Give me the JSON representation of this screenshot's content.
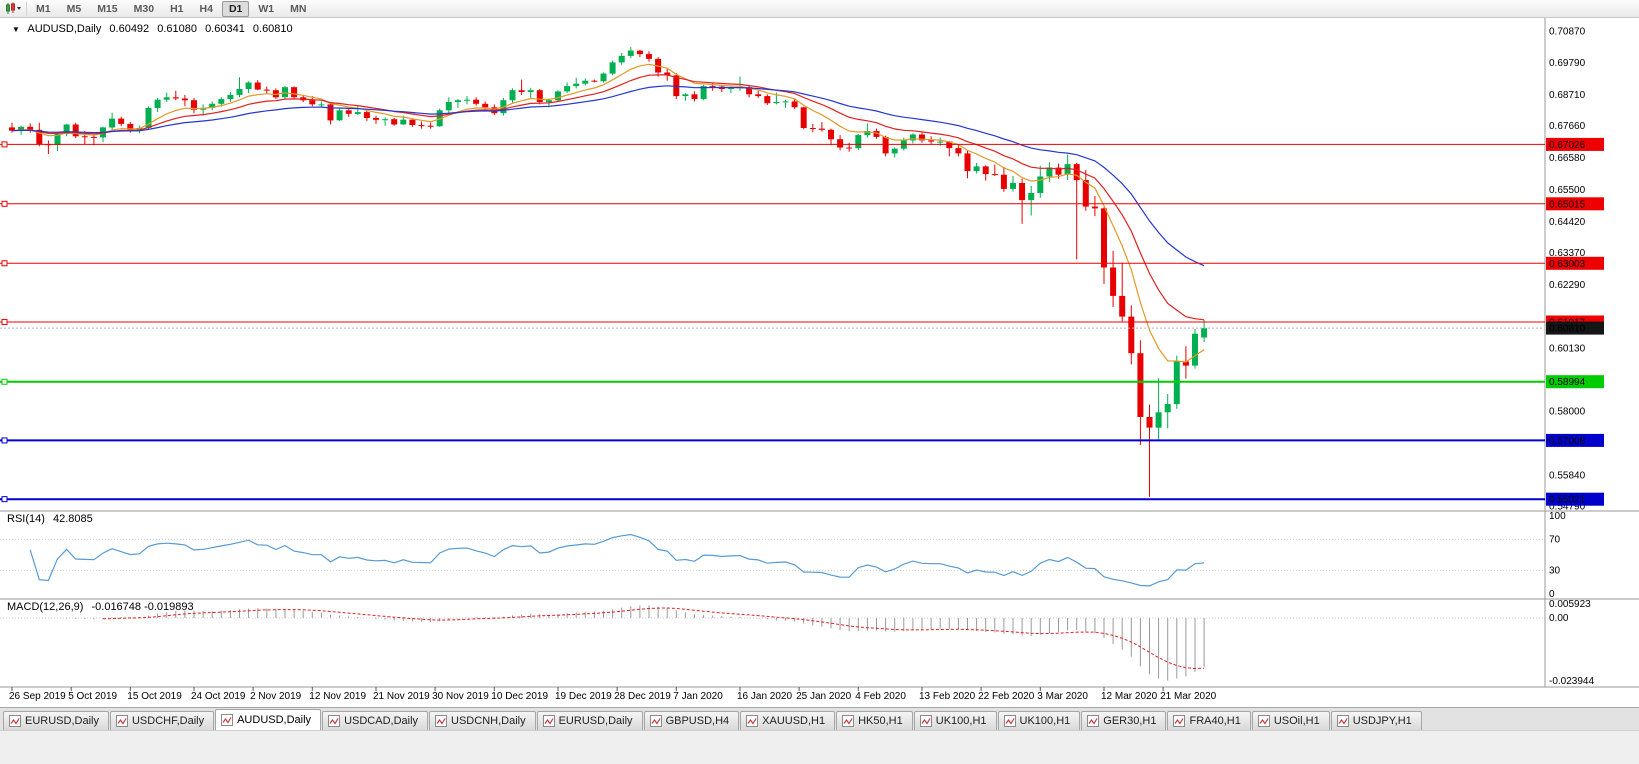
{
  "toolbar": {
    "timeframes": [
      "M1",
      "M5",
      "M15",
      "M30",
      "H1",
      "H4",
      "D1",
      "W1",
      "MN"
    ],
    "active_timeframe": "D1"
  },
  "chart": {
    "title": {
      "marker": "▼",
      "symbol": "AUDUSD,Daily",
      "open": "0.60492",
      "high": "0.61080",
      "low": "0.60341",
      "close": "0.60810"
    },
    "price_axis_labels": [
      "0.70870",
      "0.69790",
      "0.68710",
      "0.67660",
      "0.66580",
      "0.65500",
      "0.64420",
      "0.63370",
      "0.62290",
      "0.60130",
      "0.58000",
      "0.55840",
      "0.54790"
    ],
    "rsi": {
      "name": "RSI(14)",
      "value": "42.8085",
      "axis_labels": [
        "100",
        "70",
        "30",
        "0"
      ]
    },
    "macd": {
      "name": "MACD(12,26,9)",
      "value": "-0.016748 -0.019893",
      "axis_labels": [
        "0.005923",
        "0.00",
        "-0.023944"
      ]
    }
  },
  "chart_data": {
    "type": "candlestick",
    "symbol": "AUDUSD",
    "timeframe": "Daily",
    "ylim": [
      0.5462,
      0.711
    ],
    "ohlc": [
      [
        0.676,
        0.6776,
        0.6742,
        0.6749
      ],
      [
        0.6749,
        0.6766,
        0.6735,
        0.6762
      ],
      [
        0.6762,
        0.6774,
        0.6742,
        0.6752
      ],
      [
        0.6752,
        0.6776,
        0.6696,
        0.6704
      ],
      [
        0.6704,
        0.6716,
        0.667,
        0.67
      ],
      [
        0.67,
        0.6742,
        0.668,
        0.6738
      ],
      [
        0.6738,
        0.6772,
        0.673,
        0.677
      ],
      [
        0.677,
        0.6776,
        0.6724,
        0.673
      ],
      [
        0.673,
        0.6748,
        0.6704,
        0.6728
      ],
      [
        0.6728,
        0.6736,
        0.67,
        0.6726
      ],
      [
        0.6726,
        0.6762,
        0.671,
        0.676
      ],
      [
        0.676,
        0.681,
        0.6752,
        0.679
      ],
      [
        0.679,
        0.6796,
        0.6764,
        0.6772
      ],
      [
        0.6772,
        0.6778,
        0.6742,
        0.6752
      ],
      [
        0.6752,
        0.6766,
        0.674,
        0.6758
      ],
      [
        0.6758,
        0.6832,
        0.6752,
        0.6826
      ],
      [
        0.6826,
        0.686,
        0.6812,
        0.6854
      ],
      [
        0.6854,
        0.6878,
        0.6846,
        0.6862
      ],
      [
        0.6862,
        0.6884,
        0.6852,
        0.6858
      ],
      [
        0.6858,
        0.687,
        0.6832,
        0.6852
      ],
      [
        0.6852,
        0.686,
        0.6808,
        0.682
      ],
      [
        0.682,
        0.6838,
        0.68,
        0.6826
      ],
      [
        0.6826,
        0.6848,
        0.6818,
        0.684
      ],
      [
        0.684,
        0.6862,
        0.683,
        0.6856
      ],
      [
        0.6856,
        0.688,
        0.6846,
        0.687
      ],
      [
        0.687,
        0.693,
        0.6862,
        0.689
      ],
      [
        0.689,
        0.6916,
        0.6876,
        0.6912
      ],
      [
        0.6912,
        0.692,
        0.6886,
        0.6888
      ],
      [
        0.6888,
        0.6898,
        0.6874,
        0.6886
      ],
      [
        0.6886,
        0.6892,
        0.6856,
        0.6862
      ],
      [
        0.6862,
        0.69,
        0.6856,
        0.6896
      ],
      [
        0.6896,
        0.6898,
        0.6858,
        0.6862
      ],
      [
        0.6862,
        0.687,
        0.6846,
        0.6852
      ],
      [
        0.6852,
        0.6866,
        0.6832,
        0.6838
      ],
      [
        0.6838,
        0.6848,
        0.683,
        0.6838
      ],
      [
        0.6838,
        0.684,
        0.677,
        0.6784
      ],
      [
        0.6784,
        0.6824,
        0.6782,
        0.6818
      ],
      [
        0.6818,
        0.6822,
        0.6796,
        0.6806
      ],
      [
        0.6806,
        0.6832,
        0.6802,
        0.6812
      ],
      [
        0.6812,
        0.6816,
        0.6782,
        0.6792
      ],
      [
        0.6792,
        0.68,
        0.6772,
        0.6786
      ],
      [
        0.6786,
        0.6794,
        0.6766,
        0.6788
      ],
      [
        0.6788,
        0.6792,
        0.6766,
        0.677
      ],
      [
        0.677,
        0.68,
        0.6768,
        0.6786
      ],
      [
        0.6786,
        0.6788,
        0.6762,
        0.6768
      ],
      [
        0.6768,
        0.678,
        0.6756,
        0.6766
      ],
      [
        0.6766,
        0.6776,
        0.6756,
        0.6764
      ],
      [
        0.6764,
        0.6824,
        0.6762,
        0.6818
      ],
      [
        0.6818,
        0.6862,
        0.6806,
        0.6846
      ],
      [
        0.6846,
        0.6856,
        0.6826,
        0.6852
      ],
      [
        0.6852,
        0.6866,
        0.6838,
        0.6854
      ],
      [
        0.6854,
        0.6862,
        0.6834,
        0.684
      ],
      [
        0.684,
        0.6848,
        0.6822,
        0.6828
      ],
      [
        0.6828,
        0.6838,
        0.6802,
        0.6808
      ],
      [
        0.6808,
        0.686,
        0.68,
        0.6852
      ],
      [
        0.6852,
        0.6892,
        0.6844,
        0.6886
      ],
      [
        0.6886,
        0.6922,
        0.687,
        0.688
      ],
      [
        0.688,
        0.6894,
        0.6856,
        0.6886
      ],
      [
        0.6886,
        0.689,
        0.6838,
        0.6846
      ],
      [
        0.6846,
        0.6858,
        0.6828,
        0.6852
      ],
      [
        0.6852,
        0.6886,
        0.6846,
        0.6882
      ],
      [
        0.6882,
        0.6912,
        0.6876,
        0.69
      ],
      [
        0.69,
        0.6928,
        0.6892,
        0.6908
      ],
      [
        0.6908,
        0.6926,
        0.6902,
        0.6918
      ],
      [
        0.6918,
        0.6922,
        0.6912,
        0.6916
      ],
      [
        0.6916,
        0.6946,
        0.6912,
        0.6942
      ],
      [
        0.6942,
        0.6986,
        0.6936,
        0.698
      ],
      [
        0.698,
        0.7012,
        0.6972,
        0.7002
      ],
      [
        0.7002,
        0.7032,
        0.6994,
        0.702
      ],
      [
        0.702,
        0.7022,
        0.6998,
        0.7008
      ],
      [
        0.7008,
        0.7018,
        0.6982,
        0.6992
      ],
      [
        0.6992,
        0.6998,
        0.6932,
        0.6946
      ],
      [
        0.6946,
        0.6958,
        0.6918,
        0.6936
      ],
      [
        0.6936,
        0.6944,
        0.6856,
        0.6866
      ],
      [
        0.6866,
        0.6876,
        0.685,
        0.6872
      ],
      [
        0.6872,
        0.6882,
        0.6848,
        0.6856
      ],
      [
        0.6856,
        0.6904,
        0.6852,
        0.69
      ],
      [
        0.69,
        0.6912,
        0.6884,
        0.6898
      ],
      [
        0.6898,
        0.6904,
        0.688,
        0.689
      ],
      [
        0.689,
        0.69,
        0.6876,
        0.6894
      ],
      [
        0.6894,
        0.6932,
        0.6884,
        0.6896
      ],
      [
        0.6896,
        0.6902,
        0.6862,
        0.6872
      ],
      [
        0.6872,
        0.6884,
        0.686,
        0.6866
      ],
      [
        0.6866,
        0.6872,
        0.6836,
        0.6842
      ],
      [
        0.6842,
        0.6878,
        0.6838,
        0.6846
      ],
      [
        0.6846,
        0.6854,
        0.6826,
        0.6848
      ],
      [
        0.6848,
        0.6856,
        0.6822,
        0.6828
      ],
      [
        0.6828,
        0.683,
        0.6754,
        0.6758
      ],
      [
        0.6758,
        0.6772,
        0.6744,
        0.6756
      ],
      [
        0.6756,
        0.6778,
        0.6746,
        0.6752
      ],
      [
        0.6752,
        0.6756,
        0.67,
        0.672
      ],
      [
        0.672,
        0.6734,
        0.6682,
        0.6692
      ],
      [
        0.6692,
        0.6708,
        0.6678,
        0.669
      ],
      [
        0.669,
        0.6738,
        0.6684,
        0.6734
      ],
      [
        0.6734,
        0.6774,
        0.6726,
        0.6748
      ],
      [
        0.6748,
        0.6756,
        0.6722,
        0.6728
      ],
      [
        0.6728,
        0.6732,
        0.6662,
        0.6672
      ],
      [
        0.6672,
        0.6692,
        0.6658,
        0.6688
      ],
      [
        0.6688,
        0.6726,
        0.6682,
        0.6716
      ],
      [
        0.6716,
        0.674,
        0.6706,
        0.6736
      ],
      [
        0.6736,
        0.6742,
        0.6708,
        0.6716
      ],
      [
        0.6716,
        0.673,
        0.6702,
        0.6712
      ],
      [
        0.6712,
        0.6726,
        0.6698,
        0.6712
      ],
      [
        0.6712,
        0.6714,
        0.6662,
        0.669
      ],
      [
        0.669,
        0.6704,
        0.6662,
        0.6672
      ],
      [
        0.6672,
        0.6682,
        0.6588,
        0.6612
      ],
      [
        0.6612,
        0.664,
        0.6604,
        0.6628
      ],
      [
        0.6628,
        0.6632,
        0.658,
        0.6602
      ],
      [
        0.6602,
        0.6634,
        0.6596,
        0.66
      ],
      [
        0.66,
        0.6626,
        0.6542,
        0.6552
      ],
      [
        0.6552,
        0.6596,
        0.6542,
        0.6572
      ],
      [
        0.6572,
        0.6586,
        0.6434,
        0.6514
      ],
      [
        0.6514,
        0.6562,
        0.6462,
        0.6538
      ],
      [
        0.6538,
        0.663,
        0.6522,
        0.6594
      ],
      [
        0.6594,
        0.6642,
        0.6576,
        0.6624
      ],
      [
        0.6624,
        0.6638,
        0.6586,
        0.66
      ],
      [
        0.66,
        0.6668,
        0.6582,
        0.6636
      ],
      [
        0.6636,
        0.664,
        0.6313,
        0.6582
      ],
      [
        0.6582,
        0.6616,
        0.6478,
        0.6492
      ],
      [
        0.6492,
        0.6528,
        0.646,
        0.6486
      ],
      [
        0.6486,
        0.649,
        0.623,
        0.6286
      ],
      [
        0.6286,
        0.6342,
        0.6152,
        0.619
      ],
      [
        0.619,
        0.6302,
        0.6104,
        0.612
      ],
      [
        0.612,
        0.6158,
        0.5958,
        0.5996
      ],
      [
        0.5996,
        0.604,
        0.5685,
        0.578
      ],
      [
        0.578,
        0.5822,
        0.551,
        0.5744
      ],
      [
        0.5744,
        0.5912,
        0.5702,
        0.5796
      ],
      [
        0.5796,
        0.5858,
        0.5742,
        0.5824
      ],
      [
        0.5824,
        0.5988,
        0.5808,
        0.5968
      ],
      [
        0.5968,
        0.602,
        0.591,
        0.5954
      ],
      [
        0.5954,
        0.6078,
        0.5944,
        0.6062
      ],
      [
        0.60492,
        0.6108,
        0.60341,
        0.6081
      ]
    ],
    "x_ticks": [
      [
        "26 Sep 2019",
        0
      ],
      [
        "5 Oct 2019",
        6.5
      ],
      [
        "15 Oct 2019",
        13
      ],
      [
        "24 Oct 2019",
        20
      ],
      [
        "2 Nov 2019",
        26.5
      ],
      [
        "12 Nov 2019",
        33
      ],
      [
        "21 Nov 2019",
        40
      ],
      [
        "30 Nov 2019",
        46.5
      ],
      [
        "10 Dec 2019",
        53
      ],
      [
        "19 Dec 2019",
        60
      ],
      [
        "28 Dec 2019",
        66.5
      ],
      [
        "7 Jan 2020",
        73
      ],
      [
        "16 Jan 2020",
        80
      ],
      [
        "25 Jan 2020",
        86.5
      ],
      [
        "4 Feb 2020",
        93
      ],
      [
        "13 Feb 2020",
        100
      ],
      [
        "22 Feb 2020",
        106.5
      ],
      [
        "3 Mar 2020",
        113
      ],
      [
        "12 Mar 2020",
        120
      ],
      [
        "21 Mar 2020",
        126.5
      ]
    ],
    "horizontal_lines": [
      {
        "label": "0.67026",
        "value": 0.67026,
        "color": "#ee0000",
        "width": 1
      },
      {
        "label": "0.65015",
        "value": 0.65015,
        "color": "#ee0000",
        "width": 1
      },
      {
        "label": "0.63003",
        "value": 0.63003,
        "color": "#ee0000",
        "width": 1
      },
      {
        "label": "0.61017",
        "value": 0.61017,
        "color": "#ee0000",
        "width": 1
      },
      {
        "label": "0.58994",
        "value": 0.58994,
        "color": "#00cc00",
        "width": 2
      },
      {
        "label": "0.57008",
        "value": 0.57008,
        "color": "#0000cc",
        "width": 2
      },
      {
        "label": "0.55021",
        "value": 0.55021,
        "color": "#0000cc",
        "width": 2
      }
    ],
    "current_price": {
      "label": "0.60810",
      "value": 0.6081,
      "color": "#151515"
    },
    "moving_averages": [
      {
        "period": 8,
        "color": "#e09a26"
      },
      {
        "period": 16,
        "color": "#e02020"
      },
      {
        "period": 32,
        "color": "#2438cf"
      }
    ],
    "rsi": {
      "period": 14,
      "last": 42.8085,
      "levels": [
        30,
        70
      ],
      "scale": [
        0,
        100
      ],
      "color": "#569bd5"
    },
    "macd": {
      "fast": 12,
      "slow": 26,
      "signal": 9,
      "last_main": -0.016748,
      "last_signal": -0.019893,
      "histogram_color": "#9a9a9a",
      "signal_color": "#e02020"
    }
  },
  "tabs": {
    "active_index": 2,
    "items": [
      "EURUSD,Daily",
      "USDCHF,Daily",
      "AUDUSD,Daily",
      "USDCAD,Daily",
      "USDCNH,Daily",
      "EURUSD,Daily",
      "GBPUSD,H4",
      "XAUUSD,H1",
      "HK50,H1",
      "UK100,H1",
      "UK100,H1",
      "GER30,H1",
      "FRA40,H1",
      "USOil,H1",
      "USDJPY,H1"
    ]
  }
}
